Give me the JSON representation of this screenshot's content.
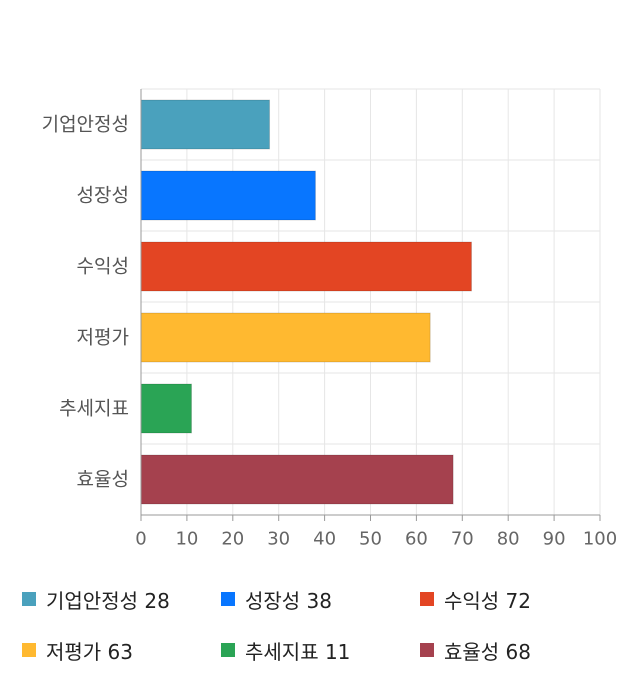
{
  "chart_data": {
    "type": "bar",
    "orientation": "horizontal",
    "categories": [
      "기업안정성",
      "성장성",
      "수익성",
      "저평가",
      "추세지표",
      "효율성"
    ],
    "values": [
      28,
      38,
      72,
      63,
      11,
      68
    ],
    "colors": [
      "#4aa1bd",
      "#0876ff",
      "#e34523",
      "#ffb930",
      "#2aa455",
      "#a5414e"
    ],
    "xlim": [
      0,
      100
    ],
    "xticks": [
      0,
      10,
      20,
      30,
      40,
      50,
      60,
      70,
      80,
      90,
      100
    ],
    "grid": true,
    "legend_position": "bottom",
    "title": "",
    "xlabel": "",
    "ylabel": ""
  },
  "legend": [
    {
      "label": "기업안정성 28",
      "color": "#4aa1bd"
    },
    {
      "label": "성장성 38",
      "color": "#0876ff"
    },
    {
      "label": "수익성 72",
      "color": "#e34523"
    },
    {
      "label": "저평가 63",
      "color": "#ffb930"
    },
    {
      "label": "추세지표 11",
      "color": "#2aa455"
    },
    {
      "label": "효율성 68",
      "color": "#a5414e"
    }
  ]
}
